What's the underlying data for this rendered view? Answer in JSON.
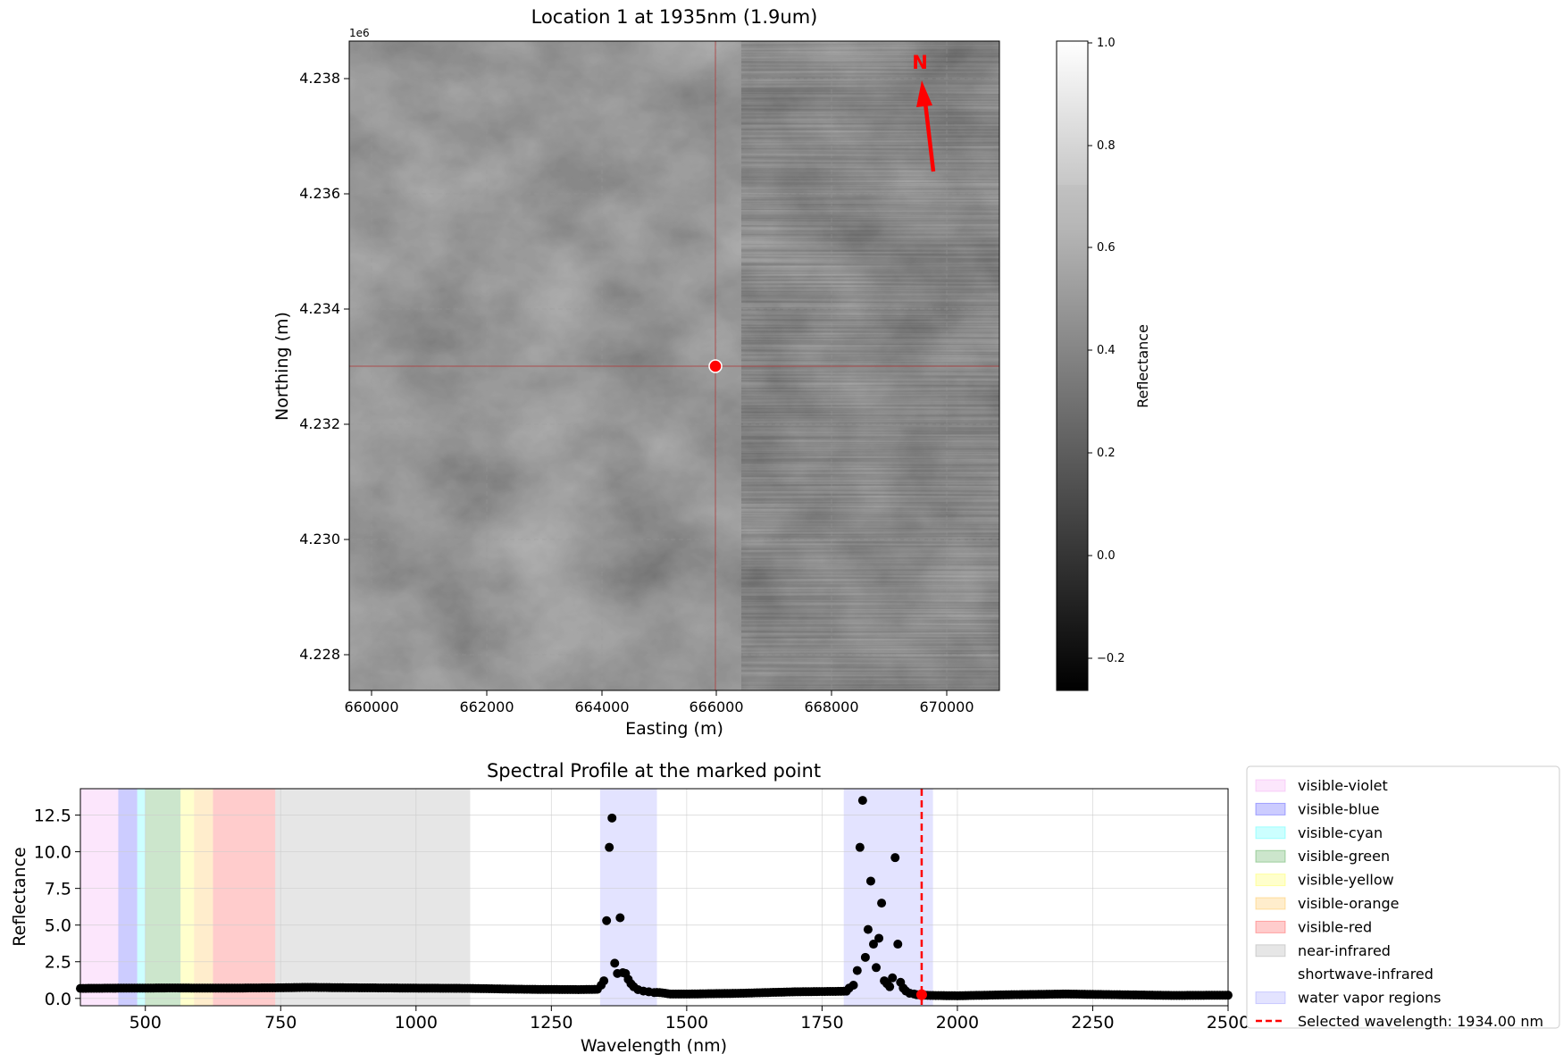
{
  "map_panel": {
    "title": "Location 1 at 1935nm (1.9um)",
    "xlabel": "Easting (m)",
    "ylabel": "Northing (m)",
    "y_offset_label": "1e6",
    "north_label": "N",
    "x_ticks": [
      "660000",
      "662000",
      "664000",
      "666000",
      "668000",
      "670000"
    ],
    "y_ticks": [
      "4.228",
      "4.230",
      "4.232",
      "4.234",
      "4.236",
      "4.238"
    ],
    "colorbar_label": "Reflectance",
    "colorbar_ticks": [
      "1.0",
      "0.8",
      "0.6",
      "0.4",
      "0.2",
      "0.0",
      "−0.2"
    ],
    "colors": {
      "marker": "#ff0000",
      "crosshair": "#cc3333",
      "arrow": "#ff0000"
    }
  },
  "chart_data": {
    "type": "scatter",
    "title": "Spectral Profile at the marked point",
    "xlabel": "Wavelength (nm)",
    "ylabel": "Reflectance",
    "xlim": [
      380,
      2500
    ],
    "ylim": [
      -0.5,
      14.3
    ],
    "x_ticks": [
      "500",
      "750",
      "1000",
      "1250",
      "1500",
      "1750",
      "2000",
      "2250",
      "2500"
    ],
    "y_ticks": [
      "0.0",
      "2.5",
      "5.0",
      "7.5",
      "10.0",
      "12.5"
    ],
    "grid": true,
    "legend_position": "outside-right",
    "selected_wavelength": 1934.0,
    "regions": [
      {
        "name": "visible-violet",
        "x0": 380,
        "x1": 450,
        "color": "#ee82ee",
        "alpha": 0.2
      },
      {
        "name": "visible-blue",
        "x0": 450,
        "x1": 485,
        "color": "#0000ff",
        "alpha": 0.2
      },
      {
        "name": "visible-cyan",
        "x0": 485,
        "x1": 500,
        "color": "#00ffff",
        "alpha": 0.2
      },
      {
        "name": "visible-green",
        "x0": 500,
        "x1": 565,
        "color": "#008000",
        "alpha": 0.2
      },
      {
        "name": "visible-yellow",
        "x0": 565,
        "x1": 590,
        "color": "#ffff00",
        "alpha": 0.2
      },
      {
        "name": "visible-orange",
        "x0": 590,
        "x1": 625,
        "color": "#ffa500",
        "alpha": 0.2
      },
      {
        "name": "visible-red",
        "x0": 625,
        "x1": 740,
        "color": "#ff0000",
        "alpha": 0.2
      },
      {
        "name": "near-infrared",
        "x0": 740,
        "x1": 1100,
        "color": "#808080",
        "alpha": 0.2
      },
      {
        "name": "shortwave-infrared",
        "x0": 1100,
        "x1": 2500,
        "color": "#ffffff",
        "alpha": 0.0
      },
      {
        "name": "water vapor regions",
        "x0": 1340,
        "x1": 1445,
        "color": "#0000ff",
        "alpha": 0.11
      },
      {
        "name": "",
        "x0": 1790,
        "x1": 1955,
        "color": "#0000ff",
        "alpha": 0.11
      }
    ],
    "legend": [
      {
        "label": "visible-violet",
        "color": "#ee82ee",
        "alpha": 0.2,
        "kind": "patch"
      },
      {
        "label": "visible-blue",
        "color": "#0000ff",
        "alpha": 0.2,
        "kind": "patch"
      },
      {
        "label": "visible-cyan",
        "color": "#00ffff",
        "alpha": 0.2,
        "kind": "patch"
      },
      {
        "label": "visible-green",
        "color": "#008000",
        "alpha": 0.2,
        "kind": "patch"
      },
      {
        "label": "visible-yellow",
        "color": "#ffff00",
        "alpha": 0.2,
        "kind": "patch"
      },
      {
        "label": "visible-orange",
        "color": "#ffa500",
        "alpha": 0.2,
        "kind": "patch"
      },
      {
        "label": "visible-red",
        "color": "#ff0000",
        "alpha": 0.2,
        "kind": "patch"
      },
      {
        "label": "near-infrared",
        "color": "#808080",
        "alpha": 0.2,
        "kind": "patch"
      },
      {
        "label": "shortwave-infrared",
        "color": "#ffffff",
        "alpha": 0.0,
        "kind": "patch"
      },
      {
        "label": "water vapor regions",
        "color": "#0000ff",
        "alpha": 0.11,
        "kind": "patch"
      },
      {
        "label": "Selected wavelength: 1934.00 nm",
        "color": "#ff0000",
        "kind": "dashed-line"
      }
    ],
    "baseline": [
      [
        380,
        0.68
      ],
      [
        450,
        0.7
      ],
      [
        550,
        0.71
      ],
      [
        650,
        0.7
      ],
      [
        740,
        0.72
      ],
      [
        800,
        0.75
      ],
      [
        900,
        0.72
      ],
      [
        1000,
        0.7
      ],
      [
        1100,
        0.68
      ],
      [
        1200,
        0.62
      ],
      [
        1300,
        0.6
      ],
      [
        1335,
        0.62
      ],
      [
        1450,
        0.4
      ],
      [
        1470,
        0.3
      ],
      [
        1500,
        0.3
      ],
      [
        1600,
        0.35
      ],
      [
        1700,
        0.45
      ],
      [
        1780,
        0.48
      ],
      [
        1800,
        0.5
      ],
      [
        1950,
        0.2
      ],
      [
        2000,
        0.18
      ],
      [
        2100,
        0.25
      ],
      [
        2200,
        0.3
      ],
      [
        2300,
        0.25
      ],
      [
        2400,
        0.2
      ],
      [
        2500,
        0.22
      ]
    ],
    "baseline_step_nm": 5,
    "peaks": [
      [
        1342,
        0.9
      ],
      [
        1347,
        1.2
      ],
      [
        1352,
        5.3
      ],
      [
        1357,
        10.3
      ],
      [
        1362,
        12.3
      ],
      [
        1367,
        2.4
      ],
      [
        1372,
        1.7
      ],
      [
        1377,
        5.5
      ],
      [
        1382,
        1.75
      ],
      [
        1387,
        1.7
      ],
      [
        1392,
        1.3
      ],
      [
        1397,
        1.0
      ],
      [
        1402,
        0.8
      ],
      [
        1410,
        0.6
      ],
      [
        1420,
        0.5
      ],
      [
        1430,
        0.45
      ],
      [
        1440,
        0.4
      ],
      [
        1800,
        0.7
      ],
      [
        1808,
        0.9
      ],
      [
        1815,
        1.9
      ],
      [
        1820,
        10.3
      ],
      [
        1825,
        13.5
      ],
      [
        1830,
        2.8
      ],
      [
        1835,
        4.7
      ],
      [
        1840,
        8.0
      ],
      [
        1845,
        3.7
      ],
      [
        1850,
        2.1
      ],
      [
        1855,
        4.1
      ],
      [
        1860,
        6.5
      ],
      [
        1865,
        1.2
      ],
      [
        1870,
        1.0
      ],
      [
        1875,
        0.8
      ],
      [
        1880,
        1.4
      ],
      [
        1885,
        9.6
      ],
      [
        1890,
        3.7
      ],
      [
        1895,
        1.1
      ],
      [
        1900,
        0.7
      ],
      [
        1905,
        0.5
      ],
      [
        1912,
        0.35
      ],
      [
        1920,
        0.3
      ]
    ],
    "selected_point": [
      1934,
      0.25
    ]
  }
}
